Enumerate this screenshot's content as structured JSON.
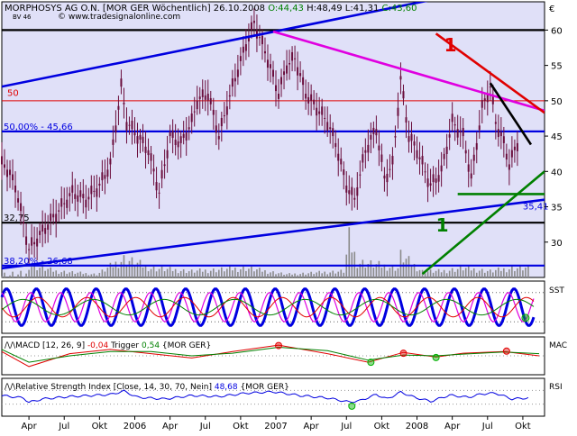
{
  "header": {
    "title": "MORPHOSYS AG O.N. [MOR GER  Wöchentlich] 26.10.2008",
    "ohlc": [
      {
        "label": "O:44,43",
        "color": "#008000"
      },
      {
        "label": "H:48,49",
        "color": "#000000"
      },
      {
        "label": "L:41,31",
        "color": "#000000"
      },
      {
        "label": "C:43,60",
        "color": "#008000"
      }
    ],
    "sublabel": "BV 46",
    "watermark": "© www.tradesignalonline.com",
    "currency": "€"
  },
  "colors": {
    "panel_bg": "#e0e0f8",
    "candle": "#6a0d3c",
    "blue": "#0000e0",
    "magenta": "#e000e0",
    "red": "#e00000",
    "green": "#008000",
    "black": "#000000"
  },
  "chart_data": [
    {
      "type": "candlestick",
      "name": "price",
      "ylim": [
        25,
        64
      ],
      "yticks": [
        30,
        35,
        40,
        45,
        50,
        55,
        60
      ],
      "ytick_labels": [
        "30",
        "35",
        "40",
        "45",
        "50",
        "55",
        "60"
      ],
      "x_labels": [
        "Apr",
        "Jul",
        "Okt",
        "2006",
        "Apr",
        "Jul",
        "Okt",
        "2007",
        "Apr",
        "Jul",
        "Okt",
        "2008",
        "Apr",
        "Jul",
        "Okt"
      ],
      "x_label_pos": [
        0,
        13,
        26,
        39,
        52,
        65,
        78,
        91,
        104,
        117,
        130,
        143,
        156,
        169,
        182
      ],
      "x_range": [
        -10,
        190
      ],
      "close_points": [
        [
          -9,
          41
        ],
        [
          -5,
          38
        ],
        [
          0,
          29
        ],
        [
          4,
          31
        ],
        [
          8,
          33
        ],
        [
          12,
          35
        ],
        [
          16,
          37
        ],
        [
          21,
          36
        ],
        [
          26,
          38
        ],
        [
          30,
          41
        ],
        [
          34,
          52
        ],
        [
          36,
          47
        ],
        [
          40,
          45
        ],
        [
          44,
          43
        ],
        [
          48,
          37
        ],
        [
          52,
          45
        ],
        [
          56,
          44
        ],
        [
          60,
          47
        ],
        [
          62,
          50
        ],
        [
          66,
          51
        ],
        [
          70,
          45
        ],
        [
          75,
          52
        ],
        [
          80,
          58
        ],
        [
          83,
          61
        ],
        [
          87,
          57
        ],
        [
          92,
          51
        ],
        [
          95,
          55
        ],
        [
          98,
          56
        ],
        [
          102,
          51
        ],
        [
          106,
          49
        ],
        [
          110,
          47
        ],
        [
          113,
          44
        ],
        [
          117,
          38
        ],
        [
          120,
          36
        ],
        [
          124,
          43
        ],
        [
          128,
          46
        ],
        [
          131,
          39
        ],
        [
          134,
          41
        ],
        [
          137,
          53
        ],
        [
          140,
          45
        ],
        [
          143,
          43
        ],
        [
          148,
          38
        ],
        [
          152,
          40
        ],
        [
          156,
          47
        ],
        [
          160,
          45
        ],
        [
          163,
          39
        ],
        [
          167,
          49
        ],
        [
          170,
          52
        ],
        [
          172,
          47
        ],
        [
          175,
          44
        ],
        [
          177,
          41
        ],
        [
          180,
          44
        ]
      ],
      "volume_points": [
        [
          0,
          4
        ],
        [
          10,
          2
        ],
        [
          25,
          1
        ],
        [
          35,
          6
        ],
        [
          45,
          3
        ],
        [
          60,
          2
        ],
        [
          80,
          3
        ],
        [
          95,
          1
        ],
        [
          116,
          2
        ],
        [
          118,
          12
        ],
        [
          121,
          5
        ],
        [
          136,
          3
        ],
        [
          137,
          7
        ],
        [
          145,
          2
        ],
        [
          152,
          2
        ],
        [
          160,
          3
        ],
        [
          170,
          2
        ],
        [
          178,
          3
        ]
      ],
      "horizontal_lines": [
        {
          "value": 60,
          "color": "#000000"
        },
        {
          "value": 50,
          "color": "#e00000"
        },
        {
          "value": 45.66,
          "color": "#0000e0",
          "label": "50,00% - 45,66"
        },
        {
          "value": 32.75,
          "color": "#000000",
          "label": "32,75"
        },
        {
          "value": 26.68,
          "color": "#0000e0",
          "label": "38,20% - 26,68"
        }
      ],
      "trendlines": [
        {
          "color": "#0000e0",
          "from": [
            -10,
            52
          ],
          "to": [
            190,
            67.5
          ]
        },
        {
          "color": "#0000e0",
          "from": [
            -10,
            26.3
          ],
          "to": [
            190,
            36
          ]
        },
        {
          "color": "#e000e0",
          "from": [
            90,
            59.8
          ],
          "to": [
            190,
            48.6
          ]
        },
        {
          "color": "#e00000",
          "from": [
            150,
            59.5
          ],
          "to": [
            190,
            48.3
          ]
        },
        {
          "color": "#000000",
          "from": [
            170,
            52.5
          ],
          "to": [
            185,
            43.8
          ]
        },
        {
          "color": "#008000",
          "from": [
            145,
            25.5
          ],
          "to": [
            190,
            40
          ]
        },
        {
          "color": "#008000",
          "from": [
            158,
            36.8
          ],
          "to": [
            190,
            36.8
          ]
        }
      ],
      "annotations": [
        {
          "text": "1",
          "x": 153,
          "y": 57,
          "color": "#e00000"
        },
        {
          "text": "1",
          "x": 150,
          "y": 31.5,
          "color": "#008000"
        },
        {
          "text": "50",
          "x": -8,
          "y": 50.7,
          "color": "#e00000"
        },
        {
          "text": "35,41",
          "x": 182,
          "y": 34.6,
          "color": "#0000e0"
        }
      ]
    },
    {
      "type": "line",
      "name": "SST",
      "label": "SST",
      "ylim": [
        0,
        100
      ],
      "dotted_levels": [
        20,
        80
      ],
      "series": [
        {
          "color": "#0000e0",
          "width": 3,
          "period": 11,
          "amplitude": 38,
          "center": 50,
          "phase": 0
        },
        {
          "color": "#e000e0",
          "width": 1.2,
          "period": 11,
          "amplitude": 30,
          "center": 50,
          "phase": 1.2
        },
        {
          "color": "#e00000",
          "width": 1,
          "period": 18,
          "amplitude": 20,
          "center": 50,
          "phase": 0.4
        },
        {
          "color": "#008000",
          "width": 1,
          "period": 26,
          "amplitude": 16,
          "center": 50,
          "phase": 2.1
        }
      ],
      "markers": [
        {
          "x": 183,
          "y": 28,
          "color": "#00b000"
        }
      ]
    },
    {
      "type": "line",
      "name": "MACD",
      "legend": [
        {
          "text": "MACD [12, 26, 9] ",
          "color": "#000000"
        },
        {
          "text": "-0,04 ",
          "color": "#e00000"
        },
        {
          "text": "Trigger ",
          "color": "#000000"
        },
        {
          "text": "0,54 ",
          "color": "#008000"
        },
        {
          "text": "{MOR GER}",
          "color": "#000000"
        }
      ],
      "label": "MAC",
      "ylim": [
        -4,
        4
      ],
      "zero_line": 0,
      "series": [
        {
          "color": "#e00000",
          "points": [
            [
              -10,
              1
            ],
            [
              0,
              -2.5
            ],
            [
              15,
              0.5
            ],
            [
              30,
              1.5
            ],
            [
              45,
              0.5
            ],
            [
              60,
              -0.5
            ],
            [
              75,
              1
            ],
            [
              92,
              2.5
            ],
            [
              110,
              0.5
            ],
            [
              125,
              -1.5
            ],
            [
              138,
              0.8
            ],
            [
              150,
              -0.3
            ],
            [
              160,
              0.6
            ],
            [
              175,
              1
            ],
            [
              188,
              0
            ]
          ]
        },
        {
          "color": "#008000",
          "points": [
            [
              -10,
              1.5
            ],
            [
              0,
              -1.5
            ],
            [
              15,
              0
            ],
            [
              30,
              1
            ],
            [
              45,
              1
            ],
            [
              60,
              0
            ],
            [
              75,
              0.6
            ],
            [
              92,
              2
            ],
            [
              110,
              1.2
            ],
            [
              125,
              -1
            ],
            [
              138,
              0.2
            ],
            [
              150,
              0
            ],
            [
              160,
              0.4
            ],
            [
              175,
              0.9
            ],
            [
              188,
              0.5
            ]
          ]
        }
      ],
      "markers": [
        {
          "x": 92,
          "y": 2.4,
          "color": "#e00000"
        },
        {
          "x": 126,
          "y": -1.5,
          "color": "#00b000"
        },
        {
          "x": 138,
          "y": 0.6,
          "color": "#e00000"
        },
        {
          "x": 150,
          "y": -0.4,
          "color": "#00b000"
        },
        {
          "x": 176,
          "y": 1.1,
          "color": "#e00000"
        }
      ]
    },
    {
      "type": "line",
      "name": "RSI",
      "legend": [
        {
          "text": "Relative Strength Index [Close, 14, 30, 70, Nein] ",
          "color": "#000000"
        },
        {
          "text": "48,68 ",
          "color": "#0000e0"
        },
        {
          "text": "{MOR GER}",
          "color": "#000000"
        }
      ],
      "label": "RSI",
      "ylim": [
        0,
        100
      ],
      "dotted_levels": [
        30,
        70
      ],
      "series": [
        {
          "color": "#0000e0",
          "points": [
            [
              -10,
              55
            ],
            [
              -2,
              48
            ],
            [
              0,
              35
            ],
            [
              5,
              45
            ],
            [
              15,
              52
            ],
            [
              30,
              58
            ],
            [
              35,
              68
            ],
            [
              40,
              50
            ],
            [
              50,
              45
            ],
            [
              60,
              55
            ],
            [
              70,
              52
            ],
            [
              80,
              62
            ],
            [
              90,
              66
            ],
            [
              100,
              55
            ],
            [
              110,
              48
            ],
            [
              118,
              36
            ],
            [
              122,
              40
            ],
            [
              128,
              58
            ],
            [
              132,
              45
            ],
            [
              137,
              65
            ],
            [
              142,
              50
            ],
            [
              148,
              38
            ],
            [
              155,
              56
            ],
            [
              162,
              50
            ],
            [
              167,
              60
            ],
            [
              172,
              62
            ],
            [
              178,
              45
            ],
            [
              184,
              48
            ]
          ]
        }
      ],
      "markers": [
        {
          "x": 119,
          "y": 24,
          "color": "#00b000"
        }
      ]
    }
  ]
}
